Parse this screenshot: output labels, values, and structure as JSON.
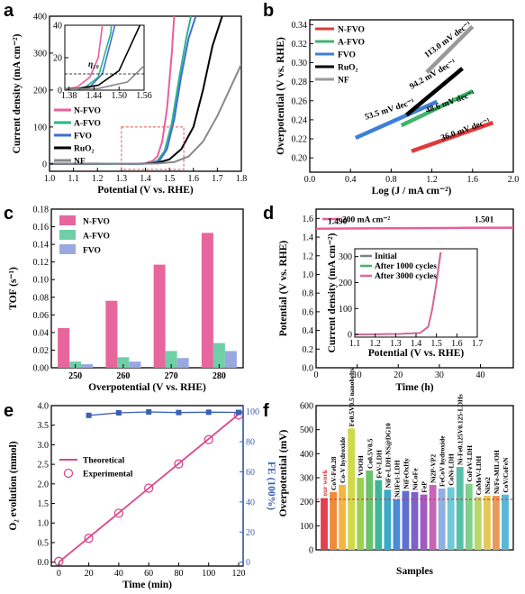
{
  "chart_data": [
    {
      "panel": "a",
      "type": "line",
      "xlabel": "Potential (V vs. RHE)",
      "ylabel": "Current density (mA cm⁻²)",
      "xlim": [
        1.0,
        1.8
      ],
      "ylim": [
        -20,
        400
      ],
      "xticks": [
        "1.0",
        "1.1",
        "1.2",
        "1.3",
        "1.4",
        "1.5",
        "1.6",
        "1.7",
        "1.8"
      ],
      "yticks": [
        "0",
        "100",
        "200",
        "300",
        "400"
      ],
      "legend_position": "right",
      "series": [
        {
          "name": "N-FVO",
          "color": "#e8609a",
          "x": [
            1.0,
            1.36,
            1.4,
            1.43,
            1.45,
            1.47,
            1.49,
            1.51,
            1.52
          ],
          "y": [
            0,
            0,
            2,
            8,
            20,
            60,
            150,
            300,
            400
          ]
        },
        {
          "name": "A-FVO",
          "color": "#2bb58c",
          "x": [
            1.0,
            1.38,
            1.42,
            1.45,
            1.48,
            1.51,
            1.54,
            1.57,
            1.59
          ],
          "y": [
            0,
            0,
            2,
            8,
            35,
            110,
            230,
            340,
            400
          ]
        },
        {
          "name": "FVO",
          "color": "#3d6fd6",
          "x": [
            1.0,
            1.39,
            1.43,
            1.46,
            1.49,
            1.52,
            1.55,
            1.58,
            1.61
          ],
          "y": [
            0,
            0,
            2,
            10,
            40,
            120,
            240,
            340,
            400
          ]
        },
        {
          "name": "RuO₂",
          "color": "#000000",
          "x": [
            1.0,
            1.4,
            1.45,
            1.5,
            1.55,
            1.6,
            1.64,
            1.68,
            1.72
          ],
          "y": [
            0,
            1,
            3,
            12,
            40,
            100,
            200,
            320,
            400
          ]
        },
        {
          "name": "NF",
          "color": "#888888",
          "x": [
            1.0,
            1.45,
            1.52,
            1.58,
            1.64,
            1.7,
            1.75,
            1.8
          ],
          "y": [
            0,
            1,
            5,
            20,
            60,
            130,
            200,
            270
          ]
        }
      ],
      "inset": {
        "xlim": [
          1.37,
          1.56
        ],
        "ylim": [
          0,
          40
        ],
        "xticks": [
          "1.38",
          "1.44",
          "1.50",
          "1.56"
        ],
        "yticks": [
          "0",
          "20",
          "40"
        ],
        "annotation": "η₁₀",
        "reference_y": 10
      }
    },
    {
      "panel": "b",
      "type": "line",
      "xlabel": "Log (J / mA cm⁻²)",
      "ylabel": "Overpotential (V vs. RHE)",
      "xlim": [
        0.0,
        2.0
      ],
      "ylim": [
        0.185,
        0.345
      ],
      "xticks": [
        "0.0",
        "0.4",
        "0.8",
        "1.2",
        "1.6",
        "2.0"
      ],
      "yticks": [
        "0.20",
        "0.22",
        "0.24",
        "0.26",
        "0.28",
        "0.30",
        "0.32",
        "0.34"
      ],
      "legend_position": "top-left",
      "series": [
        {
          "name": "N-FVO",
          "color": "#e03a3a",
          "x": [
            1.0,
            1.8
          ],
          "y": [
            0.207,
            0.237
          ],
          "slope_label": "36.0 mV dec⁻¹"
        },
        {
          "name": "A-FVO",
          "color": "#3fb56a",
          "x": [
            0.9,
            1.6
          ],
          "y": [
            0.234,
            0.27
          ],
          "slope_label": "48.6 mV dec⁻¹"
        },
        {
          "name": "FVO",
          "color": "#3d7fd6",
          "x": [
            0.45,
            1.25
          ],
          "y": [
            0.221,
            0.259
          ],
          "slope_label": "53.5 mV dec⁻¹"
        },
        {
          "name": "RuO₂",
          "color": "#000000",
          "x": [
            0.95,
            1.5
          ],
          "y": [
            0.245,
            0.294
          ],
          "slope_label": "94.2 mV dec⁻¹"
        },
        {
          "name": "NF",
          "color": "#999999",
          "x": [
            1.15,
            1.6
          ],
          "y": [
            0.29,
            0.338
          ],
          "slope_label": "113.0 mV dec⁻¹"
        }
      ]
    },
    {
      "panel": "c",
      "type": "bar",
      "xlabel": "Overpotential (V vs. RHE)",
      "ylabel": "TOF (s⁻¹)",
      "categories": [
        "250",
        "260",
        "270",
        "280"
      ],
      "ylim": [
        0,
        0.18
      ],
      "yticks": [
        "0.00",
        "0.02",
        "0.04",
        "0.06",
        "0.08",
        "0.10",
        "0.12",
        "0.14",
        "0.16",
        "0.18"
      ],
      "legend_position": "top-left",
      "series": [
        {
          "name": "N-FVO",
          "color": "#e8669e",
          "values": [
            0.045,
            0.076,
            0.117,
            0.153
          ]
        },
        {
          "name": "A-FVO",
          "color": "#6fcfa8",
          "values": [
            0.007,
            0.012,
            0.019,
            0.028
          ]
        },
        {
          "name": "FVO",
          "color": "#9aa8e0",
          "values": [
            0.004,
            0.007,
            0.011,
            0.019
          ]
        }
      ]
    },
    {
      "panel": "d",
      "type": "line",
      "xlabel": "Time (h)",
      "ylabel": "Potential (V vs. RHE)",
      "xlim": [
        0,
        48
      ],
      "ylim": [
        0.0,
        1.7
      ],
      "xticks": [
        "0",
        "10",
        "20",
        "30",
        "40"
      ],
      "yticks": [
        "0.0",
        "0.2",
        "0.4",
        "0.6",
        "0.8",
        "1.0",
        "1.2",
        "1.4",
        "1.6"
      ],
      "legend": "200 mA cm⁻²",
      "annotations": [
        "1.490",
        "1.501"
      ],
      "series": [
        {
          "name": "200 mA cm⁻²",
          "color": "#e8609a",
          "x": [
            0,
            12,
            24,
            36,
            48
          ],
          "y": [
            1.49,
            1.493,
            1.496,
            1.499,
            1.501
          ]
        }
      ],
      "inset": {
        "xlabel": "Potential (V vs. RHE)",
        "ylabel": "Current density (mA cm⁻²)",
        "xlim": [
          1.1,
          1.7
        ],
        "ylim": [
          -10,
          330
        ],
        "xticks": [
          "1.1",
          "1.2",
          "1.3",
          "1.4",
          "1.5",
          "1.6",
          "1.7"
        ],
        "yticks": [
          "0",
          "100",
          "200",
          "300"
        ],
        "legend": [
          "Initial",
          "After 1000 cycles",
          "After 3000 cycles"
        ],
        "series": [
          {
            "name": "Initial",
            "color": "#808080",
            "x": [
              1.1,
              1.32,
              1.36,
              1.42,
              1.46,
              1.48,
              1.5,
              1.52
            ],
            "y": [
              0,
              2,
              4,
              6,
              30,
              100,
              200,
              320
            ]
          },
          {
            "name": "After 1000 cycles",
            "color": "#3fb56a",
            "x": [
              1.1,
              1.32,
              1.36,
              1.42,
              1.46,
              1.48,
              1.5,
              1.521
            ],
            "y": [
              0,
              2,
              4,
              6,
              30,
              100,
              200,
              320
            ]
          },
          {
            "name": "After 3000 cycles",
            "color": "#e8609a",
            "x": [
              1.1,
              1.32,
              1.36,
              1.42,
              1.46,
              1.48,
              1.5,
              1.522
            ],
            "y": [
              0,
              2,
              4,
              6,
              30,
              100,
              200,
              320
            ]
          }
        ]
      }
    },
    {
      "panel": "e",
      "type": "scatter",
      "xlabel": "Time (min)",
      "ylabel": "O₂ evolution (mmol)",
      "ylabel_right": "FE (100%)",
      "xlim": [
        -5,
        123
      ],
      "ylim": [
        -0.1,
        4.0
      ],
      "ylim_right": [
        -2.6,
        104
      ],
      "xticks": [
        "0",
        "20",
        "40",
        "60",
        "80",
        "100",
        "120"
      ],
      "yticks": [
        "0.0",
        "0.5",
        "1.0",
        "1.5",
        "2.0",
        "2.5",
        "3.0",
        "3.5",
        "4.0"
      ],
      "yticks_right": [
        "0",
        "20",
        "40",
        "60",
        "80",
        "100"
      ],
      "legend_position": "left",
      "series": [
        {
          "name": "Theoretical",
          "color": "#d9478a",
          "x": [
            0,
            120
          ],
          "y": [
            0,
            3.78
          ]
        },
        {
          "name": "Experimental",
          "color": "#d9478a",
          "x": [
            0,
            20,
            40,
            60,
            80,
            100,
            120
          ],
          "y": [
            0.02,
            0.61,
            1.25,
            1.89,
            2.51,
            3.13,
            3.76
          ]
        },
        {
          "name": "FE",
          "color": "#3a5fb5",
          "x": [
            20,
            40,
            60,
            80,
            100,
            120
          ],
          "y": [
            97.5,
            99.2,
            99.8,
            99.4,
            99.6,
            99.5
          ]
        }
      ]
    },
    {
      "panel": "f",
      "type": "bar",
      "xlabel": "Samples",
      "ylabel": "Overpotential (mV)",
      "ylim": [
        0,
        600
      ],
      "yticks": [
        "0",
        "100",
        "200",
        "300",
        "400",
        "500",
        "600"
      ],
      "reference_line": 210,
      "categories": [
        "our work",
        "CoV-Fe0.28",
        "Co-V hydroxide",
        "Fe0.5V0.5 nanobelts",
        "VOOH",
        "Co0.5V0.5",
        "FeV-LDH",
        "NiFe-LDH-NS@DG10",
        "Ni3Fe1-LDH",
        "NiFeOxHy",
        "NiCoFe",
        "FeP",
        "Ni2P-VP2",
        "FeCoV hydroxide",
        "CoNi-LDH",
        "Ni-Fe0.125V0.125-LDHs",
        "CoFeV-LDH",
        "CoMoV-LDH",
        "NiSe2",
        "Ni/Fe-MIL/OH",
        "CoV/CoFeN"
      ],
      "labels_shown": [
        "our work",
        "CoV-Fe0.28",
        "Co-V hydroxide",
        "Fe0.5V0.5 nanobelts",
        "VOOH",
        "Co0.5V0.5",
        "FeV-LDH",
        "NiFe-LDH-NS@DG10",
        "Ni3Fe1-LDH",
        "NiFeOxHy",
        "NiCoFe",
        "FeP",
        "Ni2P-VP2",
        "FeCoV hydroxide",
        "CoNi-LDH",
        "Ni-Fe0.125V0.125-LDHs",
        "CoFeV-LDH",
        "CoMoV-LDH",
        "NiSe2",
        "Ni/Fe-MIL/OH",
        "CoV/CoFeN"
      ],
      "values": [
        215,
        240,
        270,
        505,
        300,
        330,
        290,
        250,
        210,
        245,
        240,
        230,
        270,
        255,
        260,
        345,
        275,
        220,
        225,
        225,
        230
      ],
      "colors": [
        "#e0404f",
        "#f08a3a",
        "#f3b640",
        "#cfd94a",
        "#9ad24d",
        "#6ac26a",
        "#3fb59a",
        "#3aa9c9",
        "#4a8cd6",
        "#5f6fcf",
        "#7b63c8",
        "#a05ac0",
        "#c565b5",
        "#8fb0e0",
        "#6fc9d6",
        "#58c0a8",
        "#7fd08a",
        "#b8d86a",
        "#e4c85a",
        "#e99a5a",
        "#58b8d8"
      ]
    }
  ]
}
